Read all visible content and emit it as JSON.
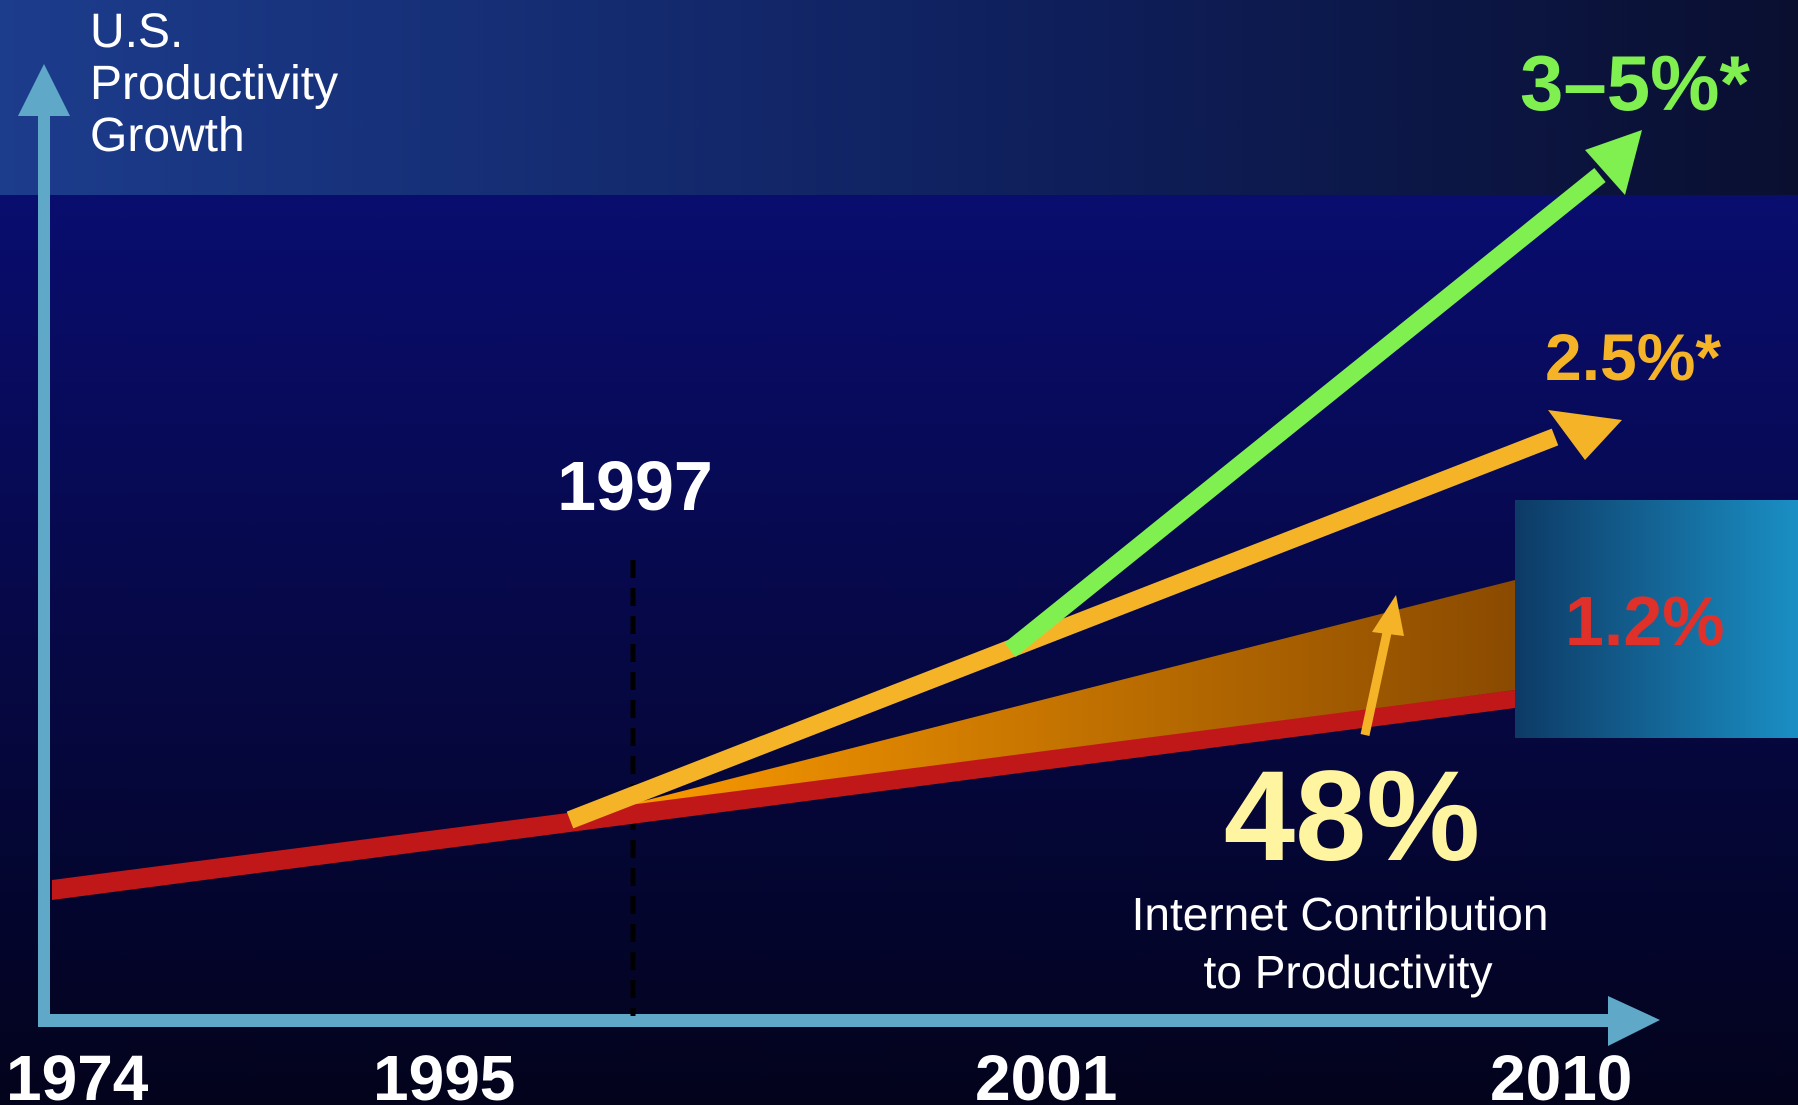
{
  "chart_data": {
    "type": "line",
    "title": "",
    "ylabel_lines": [
      "U.S.",
      "Productivity",
      "Growth"
    ],
    "x_ticks": [
      "1974",
      "1995",
      "2001",
      "2010"
    ],
    "marker": {
      "label": "1997"
    },
    "series": [
      {
        "name": "1.2%",
        "color": "#c01818",
        "start": [
          "1974",
          "low"
        ],
        "end": [
          "2010",
          "1.2%"
        ]
      },
      {
        "name": "2.5%*",
        "color": "#f5b428",
        "start": [
          "1997",
          "branch"
        ],
        "end": [
          "2010",
          "2.5%*"
        ]
      },
      {
        "name": "3–5%*",
        "color": "#80f050",
        "start": [
          "2001",
          "branch"
        ],
        "end": [
          "2010",
          "3–5%*"
        ]
      }
    ],
    "series_labels": {
      "green": "3–5%*",
      "orange": "2.5%*",
      "red": "1.2%"
    },
    "annotation": {
      "value": "48%",
      "text_lines": [
        "Internet Contribution",
        "to Productivity"
      ]
    },
    "colors": {
      "background": "#06063a",
      "axis": "#5fa8c8",
      "green": "#80f050",
      "orange": "#f5b428",
      "red": "#c01818",
      "red_label": "#e0302a",
      "annotation_value": "#fff5a0",
      "box": "#1a7fb0"
    }
  }
}
